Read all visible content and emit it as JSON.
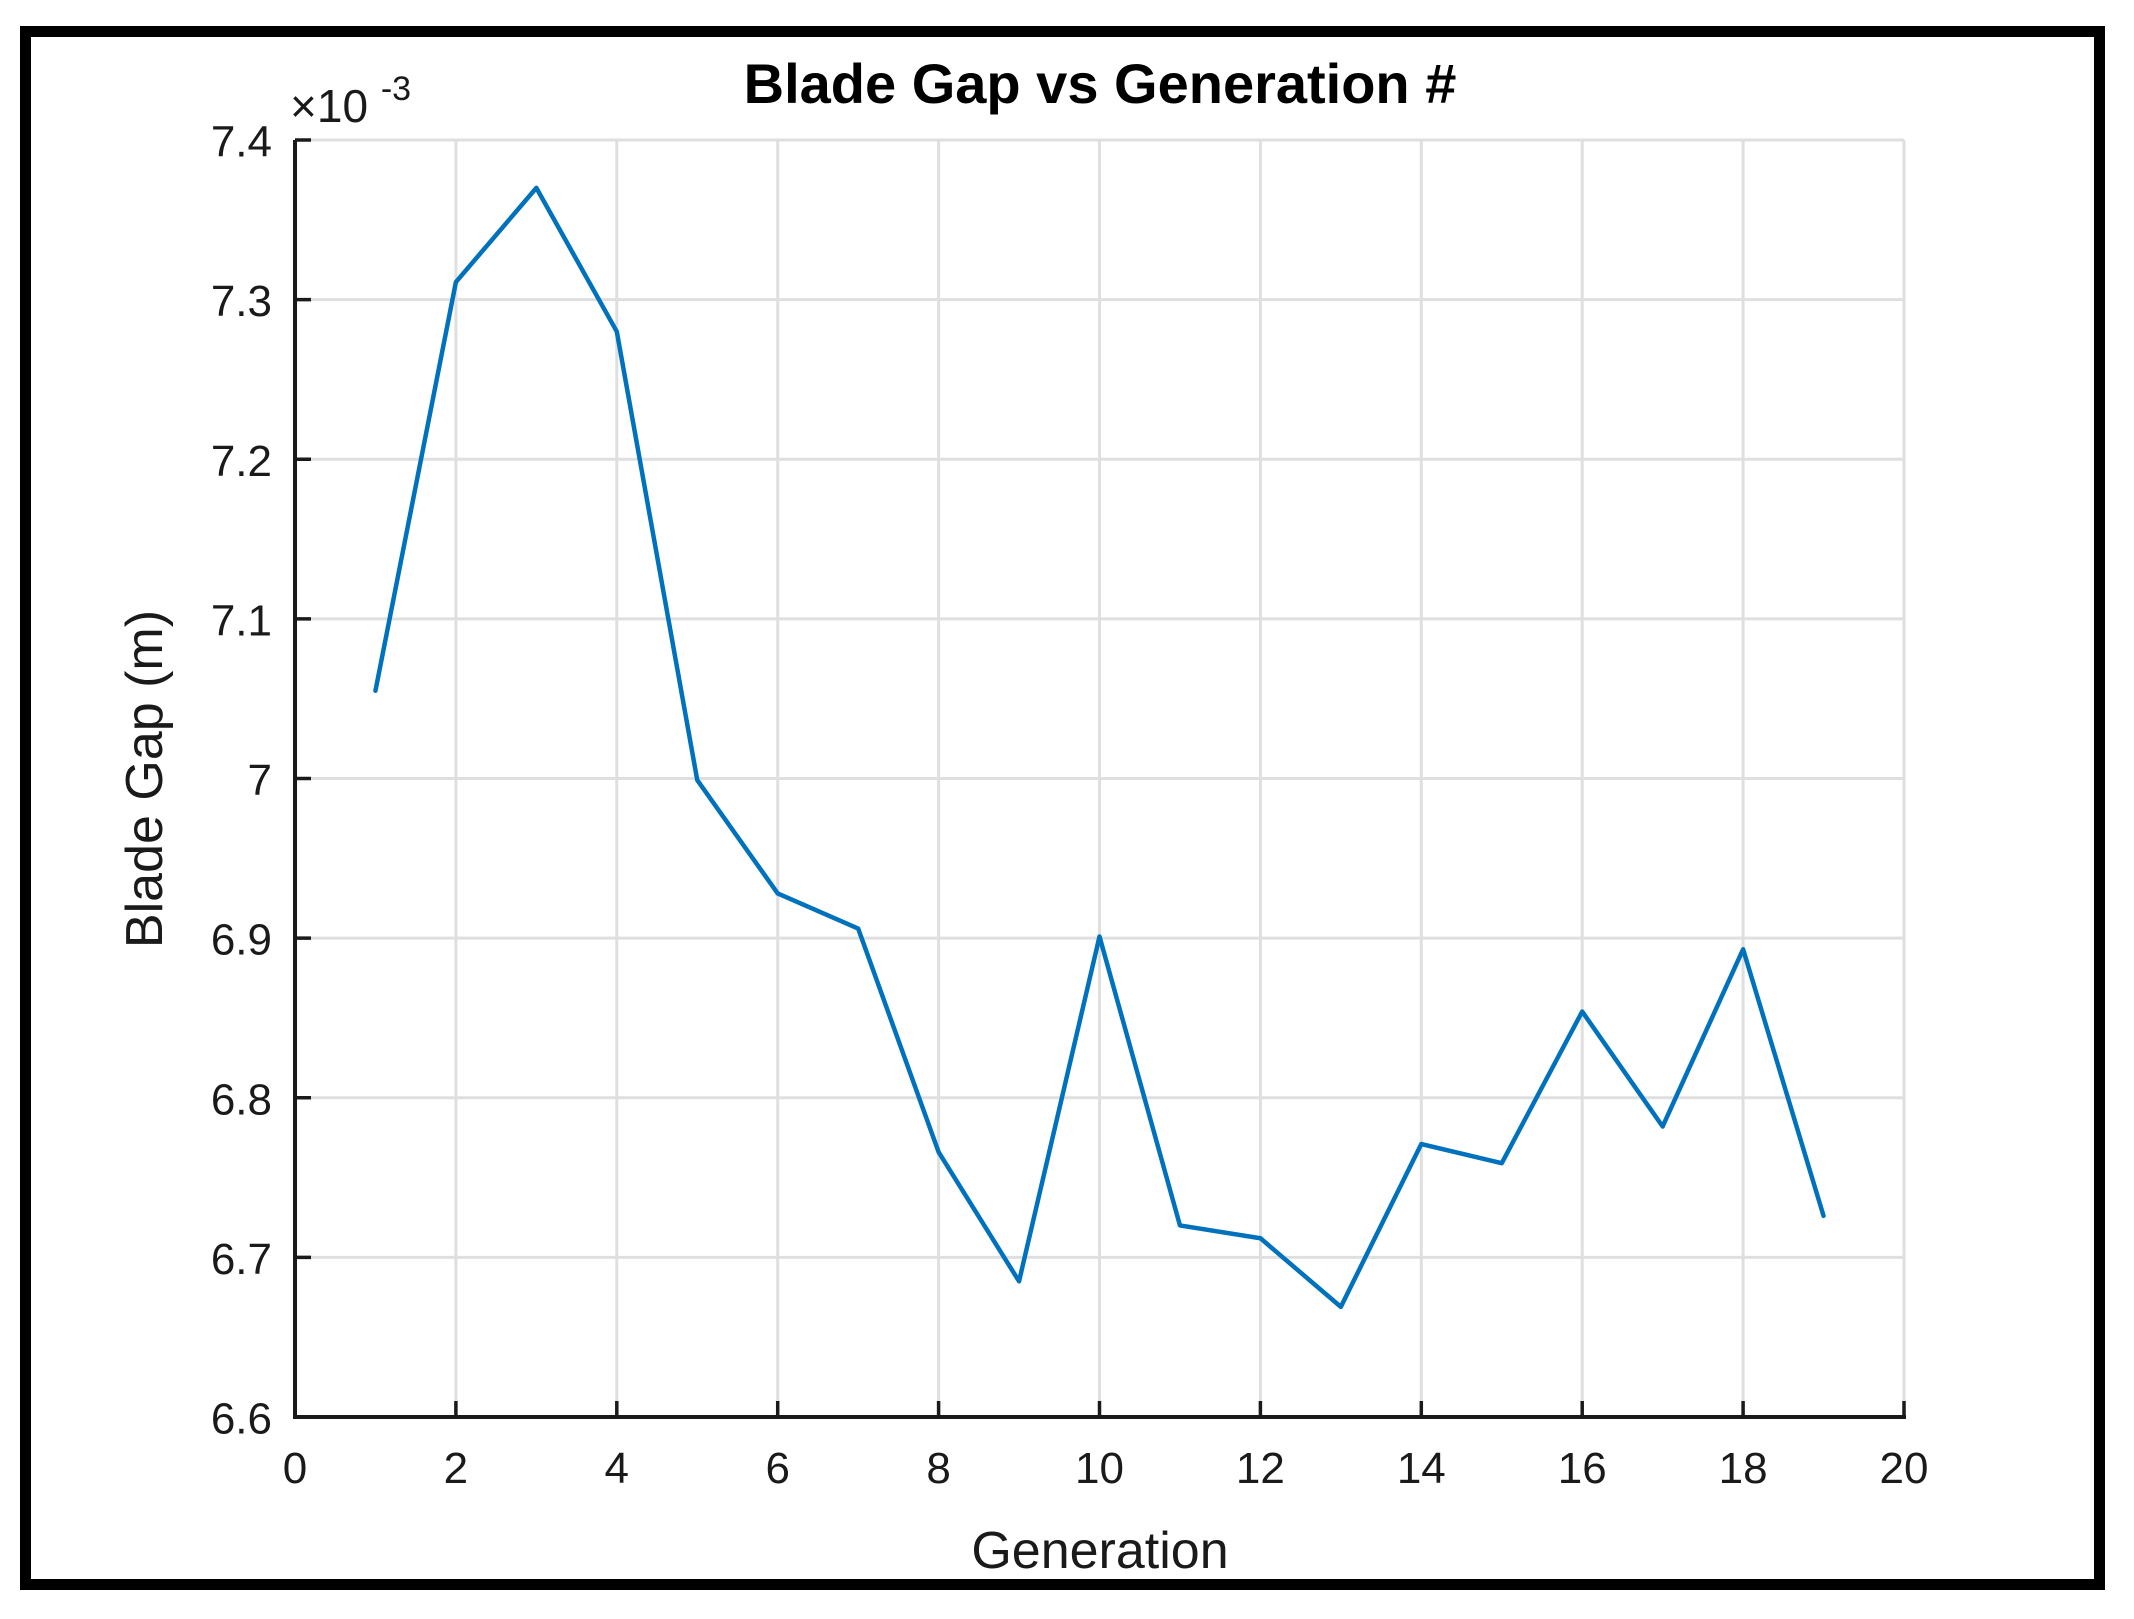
{
  "figure": {
    "background": "#ffffff",
    "border_color": "#000000"
  },
  "chart_data": {
    "type": "line",
    "title": "Blade Gap vs Generation #",
    "xlabel": "Generation",
    "ylabel": "Blade Gap (m)",
    "y_axis_multiplier": {
      "base": "×10",
      "exponent": "-3"
    },
    "units_note": "y values are in units of 10^-3 m",
    "x": [
      1,
      2,
      3,
      4,
      5,
      6,
      7,
      8,
      9,
      10,
      11,
      12,
      13,
      14,
      15,
      16,
      17,
      18,
      19
    ],
    "series": [
      {
        "name": "Blade Gap",
        "color": "#0072BD",
        "values": [
          7.055,
          7.311,
          7.37,
          7.28,
          6.999,
          6.928,
          6.906,
          6.766,
          6.685,
          6.901,
          6.72,
          6.712,
          6.669,
          6.771,
          6.759,
          6.854,
          6.782,
          6.893,
          6.726
        ]
      }
    ],
    "xlim": [
      0,
      20
    ],
    "ylim": [
      6.6,
      7.4
    ],
    "x_tick_values": [
      0,
      2,
      4,
      6,
      8,
      10,
      12,
      14,
      16,
      18,
      20
    ],
    "x_tick_labels": [
      "0",
      "2",
      "4",
      "6",
      "8",
      "10",
      "12",
      "14",
      "16",
      "18",
      "20"
    ],
    "y_tick_values": [
      6.6,
      6.7,
      6.8,
      6.9,
      7.0,
      7.1,
      7.2,
      7.3,
      7.4
    ],
    "y_tick_labels": [
      "6.6",
      "6.7",
      "6.8",
      "6.9",
      "7",
      "7.1",
      "7.2",
      "7.3",
      "7.4"
    ],
    "grid": true,
    "legend": null,
    "grid_color": "#DFDFDF",
    "axis_color": "#1A1A1A",
    "text_color": "#1A1A1A",
    "title_color": "#000000"
  }
}
